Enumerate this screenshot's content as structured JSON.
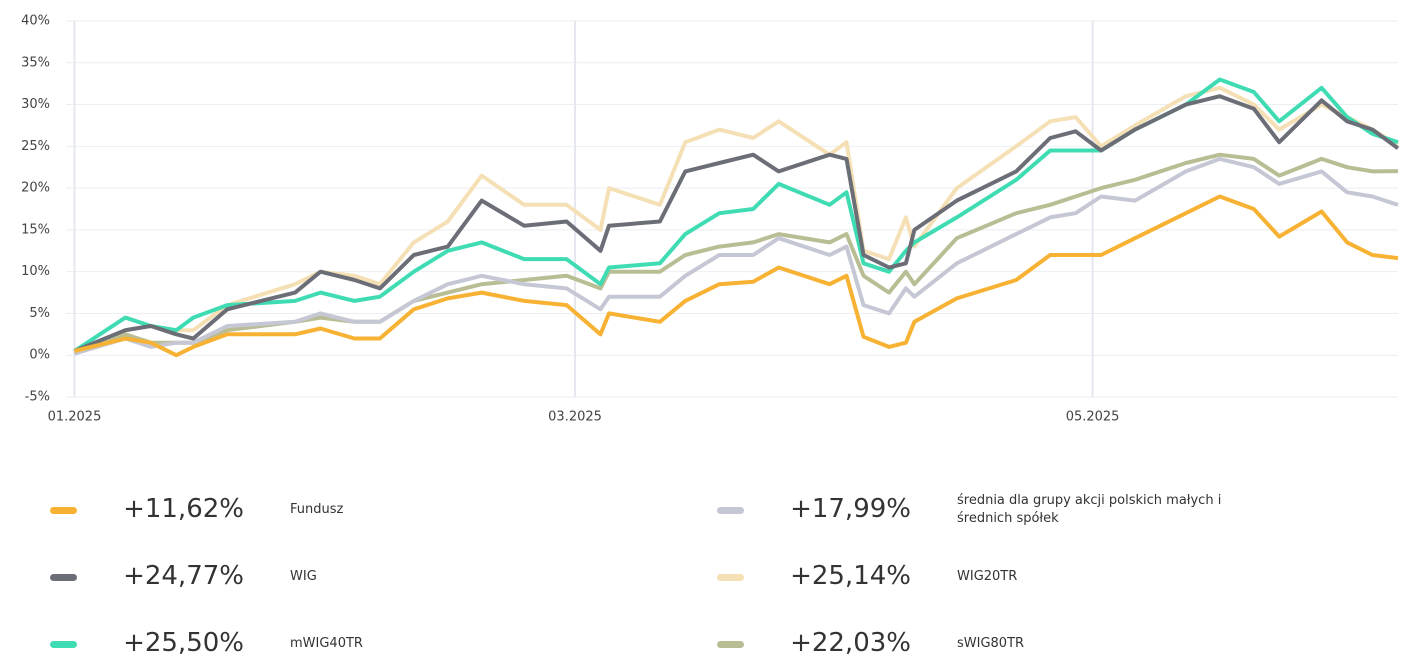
{
  "chart_data": {
    "type": "line",
    "x": [
      0,
      6,
      9,
      12,
      14,
      18,
      26,
      29,
      33,
      36,
      40,
      44,
      48,
      53,
      58,
      62,
      63,
      69,
      72,
      76,
      80,
      83,
      89,
      91,
      93,
      96,
      98,
      99,
      104,
      111,
      115,
      118,
      121,
      125,
      131,
      135,
      139,
      142,
      147,
      150,
      153,
      156
    ],
    "xlim": [
      -1,
      156
    ],
    "xticks": [
      {
        "value": 0,
        "label": "01.2025"
      },
      {
        "value": 59,
        "label": "03.2025"
      },
      {
        "value": 120,
        "label": "05.2025"
      }
    ],
    "ylim": [
      -5,
      40
    ],
    "yticks": [
      {
        "value": -5,
        "label": "-5%"
      },
      {
        "value": 0,
        "label": "0%"
      },
      {
        "value": 5,
        "label": "5%"
      },
      {
        "value": 10,
        "label": "10%"
      },
      {
        "value": 15,
        "label": "15%"
      },
      {
        "value": 20,
        "label": "20%"
      },
      {
        "value": 25,
        "label": "25%"
      },
      {
        "value": 30,
        "label": "30%"
      },
      {
        "value": 35,
        "label": "35%"
      },
      {
        "value": 40,
        "label": "40%"
      }
    ],
    "grid": true,
    "series": [
      {
        "name": "Fundusz",
        "color": "#f7b234",
        "value_label": "+11,62%",
        "values": [
          0.5,
          2,
          1.5,
          0,
          1,
          2.5,
          2.5,
          3.2,
          2,
          2,
          5.5,
          6.8,
          7.5,
          6.5,
          6,
          2.5,
          5,
          4,
          6.5,
          8.5,
          8.8,
          10.5,
          8.5,
          9.5,
          2.2,
          1,
          1.5,
          4,
          6.8,
          9,
          12,
          12,
          12,
          14,
          17,
          19,
          17.5,
          14.2,
          17.2,
          13.5,
          12,
          11.62
        ]
      },
      {
        "name": "WIG",
        "color": "#6b6e76",
        "value_label": "+24,77%",
        "values": [
          0.5,
          3,
          3.5,
          2.5,
          2,
          5.5,
          7.5,
          10,
          9,
          8,
          12,
          13,
          18.5,
          15.5,
          16,
          12.5,
          15.5,
          16,
          22,
          23,
          24,
          22,
          24,
          23.5,
          12,
          10.5,
          11,
          15,
          18.5,
          22,
          26,
          26.8,
          24.5,
          27,
          30,
          31,
          29.5,
          25.5,
          30.5,
          28,
          27,
          24.77
        ]
      },
      {
        "name": "mWIG40TR",
        "color": "#3fdcb4",
        "value_label": "+25,50%",
        "values": [
          0.5,
          4.5,
          3.5,
          3,
          4.5,
          6,
          6.5,
          7.5,
          6.5,
          7,
          10,
          12.5,
          13.5,
          11.5,
          11.5,
          8.5,
          10.5,
          11,
          14.5,
          17,
          17.5,
          20.5,
          18,
          19.5,
          11,
          10,
          12.5,
          13.5,
          16.5,
          21,
          24.5,
          24.5,
          24.5,
          27,
          30,
          33,
          31.5,
          28,
          32,
          28.5,
          26.5,
          25.5
        ]
      },
      {
        "name": "średnia dla grupy akcji polskich małych i średnich spółek",
        "color": "#c5c8d4",
        "value_label": "+17,99%",
        "values": [
          0.2,
          2,
          1,
          1.5,
          1.5,
          3.5,
          4,
          5,
          4,
          4,
          6.5,
          8.5,
          9.5,
          8.5,
          8,
          5.5,
          7,
          7,
          9.5,
          12,
          12,
          14,
          12,
          13,
          6,
          5,
          8,
          7,
          11,
          14.5,
          16.5,
          17,
          19,
          18.5,
          22,
          23.5,
          22.5,
          20.5,
          22,
          19.5,
          19,
          17.99
        ]
      },
      {
        "name": "WIG20TR",
        "color": "#f5e0b5",
        "value_label": "+25,14%",
        "values": [
          0.5,
          3,
          3.5,
          3,
          3,
          6,
          8.5,
          10,
          9.5,
          8.5,
          13.5,
          16,
          21.5,
          18,
          18,
          15,
          20,
          18,
          25.5,
          27,
          26,
          28,
          24,
          25.5,
          12.5,
          11.5,
          16.5,
          13,
          20,
          25,
          28,
          28.5,
          25,
          27.5,
          31,
          32,
          30,
          27,
          30,
          28.5,
          27,
          25.14
        ]
      },
      {
        "name": "sWIG80TR",
        "color": "#b9bd94",
        "value_label": "+22,03%",
        "values": [
          0.2,
          2.5,
          1.5,
          1.5,
          1.5,
          3,
          4,
          4.5,
          4,
          4,
          6.5,
          7.5,
          8.5,
          9,
          9.5,
          8,
          10,
          10,
          12,
          13,
          13.5,
          14.5,
          13.5,
          14.5,
          9.5,
          7.5,
          10,
          8.5,
          14,
          17,
          18,
          19,
          20,
          21,
          23,
          24,
          23.5,
          21.5,
          23.5,
          22.5,
          22,
          22.03
        ]
      }
    ]
  }
}
